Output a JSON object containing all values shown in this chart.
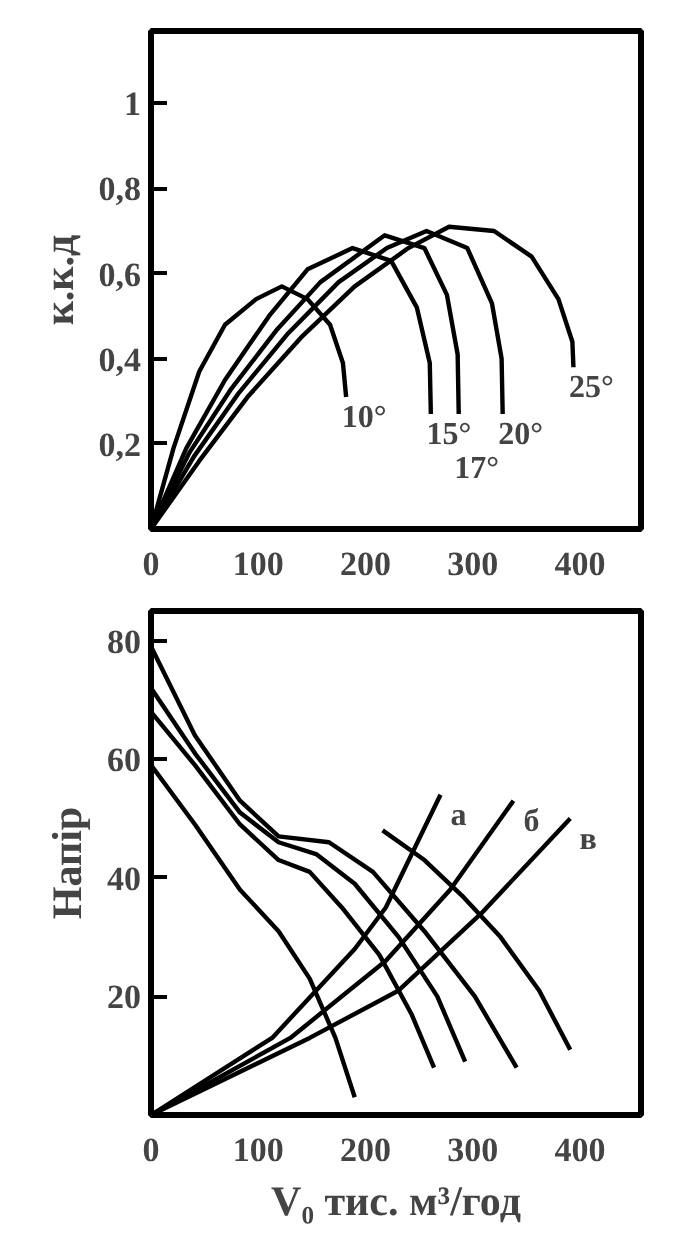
{
  "chart_data": [
    {
      "type": "line",
      "ylabel": "к.к.д",
      "xlim": [
        0,
        457
      ],
      "ylim": [
        0,
        1.17
      ],
      "xticks": [
        0,
        100,
        200,
        300,
        400
      ],
      "yticks": [
        {
          "value": 0.2,
          "label": "0,2"
        },
        {
          "value": 0.4,
          "label": "0,4"
        },
        {
          "value": 0.6,
          "label": "0,6"
        },
        {
          "value": 0.8,
          "label": "0,8"
        },
        {
          "value": 1,
          "label": "1"
        }
      ],
      "grid": false,
      "series": [
        {
          "name": "10°",
          "color": "#000000",
          "x": [
            0,
            21,
            45,
            69,
            98,
            122,
            146,
            167,
            179,
            182
          ],
          "values": [
            0,
            0.19,
            0.37,
            0.48,
            0.54,
            0.57,
            0.54,
            0.48,
            0.39,
            0.31
          ]
        },
        {
          "name": "15°",
          "color": "#000000",
          "x": [
            0,
            33,
            69,
            110,
            146,
            188,
            224,
            248,
            260,
            261
          ],
          "values": [
            0,
            0.19,
            0.35,
            0.5,
            0.61,
            0.66,
            0.63,
            0.52,
            0.39,
            0.27
          ]
        },
        {
          "name": "17°",
          "color": "#000000",
          "x": [
            0,
            36,
            75,
            118,
            158,
            218,
            255,
            276,
            286,
            287
          ],
          "values": [
            0,
            0.18,
            0.33,
            0.47,
            0.58,
            0.69,
            0.66,
            0.55,
            0.41,
            0.27
          ]
        },
        {
          "name": "20°",
          "color": "#000000",
          "x": [
            0,
            40,
            82,
            128,
            175,
            220,
            257,
            295,
            318,
            327,
            328
          ],
          "values": [
            0,
            0.17,
            0.32,
            0.46,
            0.58,
            0.66,
            0.7,
            0.66,
            0.53,
            0.4,
            0.27
          ]
        },
        {
          "name": "25°",
          "color": "#000000",
          "x": [
            0,
            45,
            90,
            140,
            190,
            240,
            278,
            320,
            355,
            380,
            393,
            394
          ],
          "values": [
            0,
            0.16,
            0.31,
            0.45,
            0.57,
            0.66,
            0.71,
            0.7,
            0.64,
            0.54,
            0.44,
            0.38
          ]
        }
      ]
    },
    {
      "type": "line",
      "ylabel": "Напір",
      "xlabel": "V₀ тис. м³/год",
      "xlim": [
        0,
        457
      ],
      "ylim": [
        0,
        85
      ],
      "xticks": [
        0,
        100,
        200,
        300,
        400
      ],
      "yticks": [
        20,
        40,
        60,
        80
      ],
      "grid": false,
      "series": [
        {
          "color": "#000000",
          "x": [
            0,
            41,
            83,
            119,
            148,
            172,
            190
          ],
          "values": [
            59,
            49,
            38,
            31,
            23,
            13,
            3
          ]
        },
        {
          "color": "#000000",
          "x": [
            0,
            41,
            83,
            119,
            148,
            178,
            213,
            243,
            264
          ],
          "values": [
            68,
            59,
            49,
            43,
            41,
            35,
            27,
            17,
            8
          ]
        },
        {
          "color": "#000000",
          "x": [
            0,
            41,
            83,
            119,
            154,
            190,
            231,
            267,
            293
          ],
          "values": [
            72,
            61,
            51,
            46,
            44,
            39,
            30,
            20,
            9
          ]
        },
        {
          "color": "#000000",
          "x": [
            0,
            41,
            83,
            119,
            166,
            207,
            255,
            302,
            341
          ],
          "values": [
            79,
            64,
            53,
            47,
            46,
            41,
            31,
            20,
            8
          ]
        },
        {
          "color": "#000000",
          "x": [
            216,
            255,
            290,
            326,
            362,
            391
          ],
          "values": [
            48,
            43,
            37,
            30,
            21,
            11
          ]
        },
        {
          "name": "а",
          "color": "#000000",
          "x": [
            0,
            113,
            190,
            219,
            270
          ],
          "values": [
            0,
            13,
            28,
            35,
            54
          ]
        },
        {
          "name": "б",
          "color": "#000000",
          "x": [
            0,
            130,
            219,
            279,
            338
          ],
          "values": [
            0,
            13,
            26,
            38,
            53
          ]
        },
        {
          "name": "в",
          "color": "#000000",
          "x": [
            0,
            148,
            231,
            308,
            391
          ],
          "values": [
            0,
            13,
            21,
            34,
            50
          ]
        }
      ]
    }
  ]
}
